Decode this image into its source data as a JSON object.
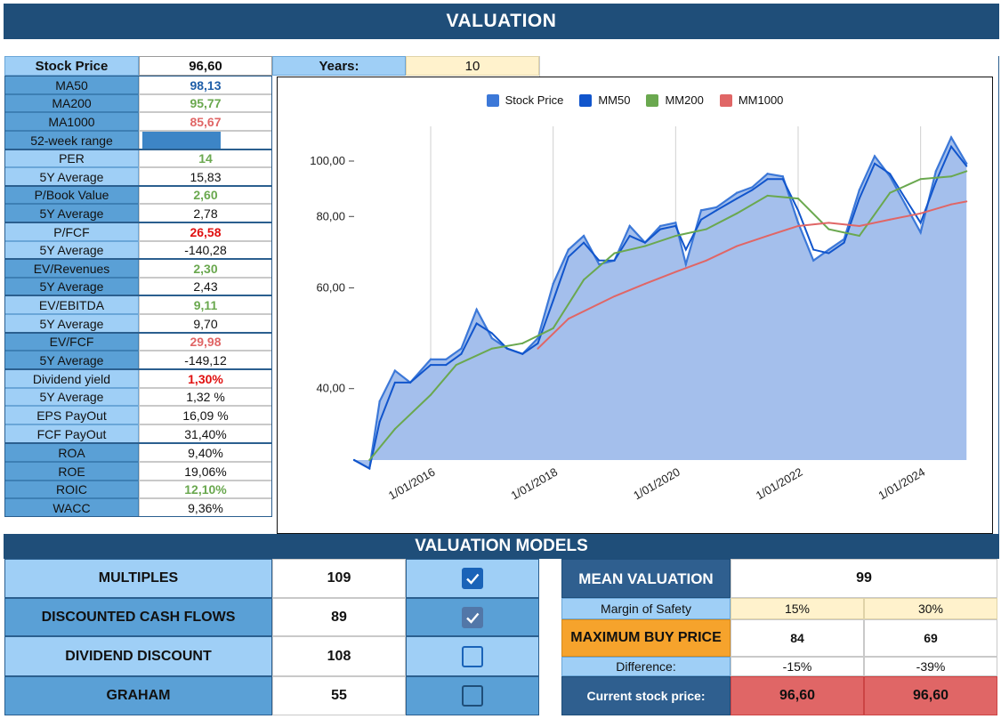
{
  "title": "VALUATION",
  "header": {
    "stock_price_label": "Stock Price",
    "stock_price_value": "96,60",
    "years_label": "Years:",
    "years_value": "10"
  },
  "metrics": {
    "ma50": {
      "label": "MA50",
      "value": "98,13"
    },
    "ma200": {
      "label": "MA200",
      "value": "95,77"
    },
    "ma1000": {
      "label": "MA1000",
      "value": "85,67"
    },
    "range52": {
      "label": "52-week range"
    },
    "per": {
      "label": "PER",
      "value": "14",
      "avg_label": "5Y Average",
      "avg": "15,83"
    },
    "pbook": {
      "label": "P/Book Value",
      "value": "2,60",
      "avg_label": "5Y Average",
      "avg": "2,78"
    },
    "pfcf": {
      "label": "P/FCF",
      "value": "26,58",
      "avg_label": "5Y Average",
      "avg": "-140,28"
    },
    "evrev": {
      "label": "EV/Revenues",
      "value": "2,30",
      "avg_label": "5Y Average",
      "avg": "2,43"
    },
    "evebitda": {
      "label": "EV/EBITDA",
      "value": "9,11",
      "avg_label": "5Y Average",
      "avg": "9,70"
    },
    "evfcf": {
      "label": "EV/FCF",
      "value": "29,98",
      "avg_label": "5Y Average",
      "avg": "-149,12"
    },
    "divyield": {
      "label": "Dividend yield",
      "value": "1,30%",
      "avg_label": "5Y Average",
      "avg": "1,32 %"
    },
    "epspayout": {
      "label": "EPS PayOut",
      "value": "16,09 %"
    },
    "fcfpayout": {
      "label": "FCF PayOut",
      "value": "31,40%"
    },
    "roa": {
      "label": "ROA",
      "value": "9,40%"
    },
    "roe": {
      "label": "ROE",
      "value": "19,06%"
    },
    "roic": {
      "label": "ROIC",
      "value": "12,10%"
    },
    "wacc": {
      "label": "WACC",
      "value": "9,36%"
    }
  },
  "colors": {
    "stock_price": "#3c78d8",
    "mm50": "#1155cc",
    "mm200": "#6aa84f",
    "mm1000": "#e06666",
    "area_fill": "#a4bfec"
  },
  "chart_data": {
    "type": "line",
    "title": "",
    "legend": [
      "Stock Price",
      "MM50",
      "MM200",
      "MM1000"
    ],
    "legend_position": "top",
    "y_scale": "log",
    "ylim": [
      30,
      115
    ],
    "y_ticks": [
      "40,00",
      "60,00",
      "80,00",
      "100,00"
    ],
    "x_ticks": [
      "1/01/2016",
      "1/01/2018",
      "1/01/2020",
      "1/01/2022",
      "1/01/2024"
    ],
    "grid": "vertical",
    "series": [
      {
        "name": "Stock Price",
        "style": "area",
        "x": [
          "2014-10",
          "2015-01",
          "2015-03",
          "2015-06",
          "2015-09",
          "2016-01",
          "2016-04",
          "2016-07",
          "2016-10",
          "2017-01",
          "2017-04",
          "2017-07",
          "2017-10",
          "2018-01",
          "2018-04",
          "2018-07",
          "2018-10",
          "2019-01",
          "2019-04",
          "2019-07",
          "2019-10",
          "2020-01",
          "2020-03",
          "2020-06",
          "2020-09",
          "2021-01",
          "2021-04",
          "2021-07",
          "2021-10",
          "2022-01",
          "2022-04",
          "2022-07",
          "2022-10",
          "2023-01",
          "2023-04",
          "2023-07",
          "2023-10",
          "2024-01",
          "2024-04",
          "2024-07",
          "2024-10"
        ],
        "values": [
          30,
          29,
          38,
          43,
          41,
          45,
          45,
          47,
          55,
          49,
          47,
          46,
          49,
          61,
          70,
          74,
          66,
          67,
          77,
          72,
          77,
          78,
          66,
          82,
          83,
          88,
          90,
          95,
          94,
          78,
          67,
          70,
          73,
          89,
          102,
          94,
          84,
          75,
          96,
          110,
          99
        ]
      },
      {
        "name": "MM50",
        "x": [
          "2014-10",
          "2015-01",
          "2015-03",
          "2015-06",
          "2015-09",
          "2016-01",
          "2016-04",
          "2016-07",
          "2016-10",
          "2017-01",
          "2017-04",
          "2017-07",
          "2017-10",
          "2018-01",
          "2018-04",
          "2018-07",
          "2018-10",
          "2019-01",
          "2019-04",
          "2019-07",
          "2019-10",
          "2020-01",
          "2020-03",
          "2020-06",
          "2020-09",
          "2021-01",
          "2021-04",
          "2021-07",
          "2021-10",
          "2022-01",
          "2022-04",
          "2022-07",
          "2022-10",
          "2023-01",
          "2023-04",
          "2023-07",
          "2023-10",
          "2024-01",
          "2024-04",
          "2024-07",
          "2024-10"
        ],
        "values": [
          30,
          29,
          35,
          41,
          41,
          44,
          44,
          46,
          52,
          50,
          47,
          46,
          48,
          57,
          68,
          72,
          67,
          67,
          74,
          72,
          76,
          77,
          70,
          79,
          82,
          86,
          89,
          93,
          93,
          82,
          70,
          69,
          72,
          86,
          99,
          95,
          86,
          78,
          92,
          106,
          98
        ]
      },
      {
        "name": "MM200",
        "x": [
          "2015-01",
          "2015-06",
          "2016-01",
          "2016-06",
          "2017-01",
          "2017-07",
          "2018-01",
          "2018-07",
          "2019-01",
          "2019-07",
          "2020-01",
          "2020-07",
          "2021-01",
          "2021-07",
          "2022-01",
          "2022-07",
          "2023-01",
          "2023-07",
          "2024-01",
          "2024-07",
          "2024-10"
        ],
        "values": [
          30,
          34,
          39,
          44,
          47,
          48,
          51,
          62,
          69,
          71,
          74,
          76,
          81,
          87,
          86,
          76,
          74,
          88,
          93,
          94,
          96
        ]
      },
      {
        "name": "MM1000",
        "x": [
          "2017-10",
          "2018-04",
          "2019-01",
          "2019-07",
          "2020-01",
          "2020-07",
          "2021-01",
          "2021-07",
          "2022-01",
          "2022-07",
          "2023-01",
          "2023-07",
          "2024-01",
          "2024-07",
          "2024-10"
        ],
        "values": [
          47,
          53,
          58,
          61,
          64,
          67,
          71,
          74,
          77,
          78,
          77,
          79,
          81,
          84,
          85
        ]
      }
    ]
  },
  "valuation_models": {
    "title": "VALUATION MODELS",
    "models": [
      {
        "label": "MULTIPLES",
        "value": "109",
        "checked": true
      },
      {
        "label": "DISCOUNTED CASH FLOWS",
        "value": "89",
        "checked": true
      },
      {
        "label": "DIVIDEND DISCOUNT",
        "value": "108",
        "checked": false
      },
      {
        "label": "GRAHAM",
        "value": "55",
        "checked": false
      }
    ],
    "mean_label": "MEAN VALUATION",
    "mean_value": "99",
    "margin_label": "Margin of Safety",
    "margin_15": "15%",
    "margin_30": "30%",
    "max_buy_label": "MAXIMUM BUY PRICE",
    "max_buy_15": "84",
    "max_buy_30": "69",
    "diff_label": "Difference:",
    "diff_15": "-15%",
    "diff_30": "-39%",
    "current_label": "Current stock price:",
    "current_15": "96,60",
    "current_30": "96,60"
  }
}
